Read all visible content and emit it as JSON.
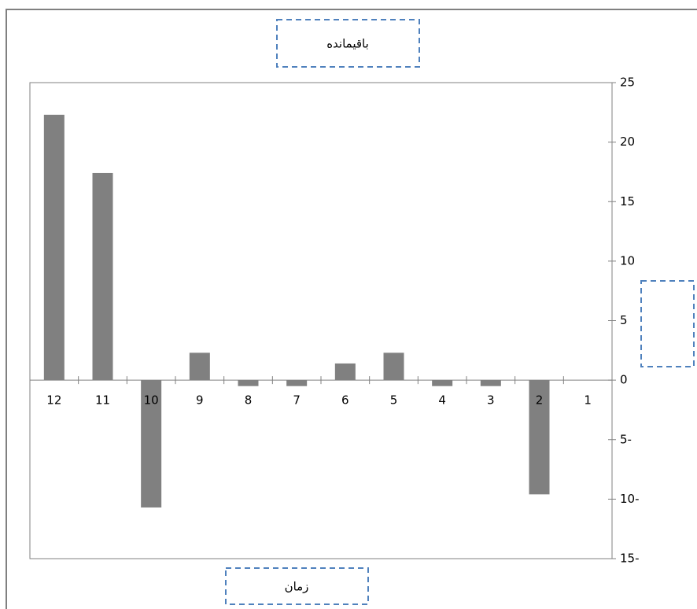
{
  "chart_data": {
    "type": "bar",
    "title": "باقیمانده",
    "x_label": "زمان",
    "categories": [
      "12",
      "11",
      "10",
      "9",
      "8",
      "7",
      "6",
      "5",
      "4",
      "3",
      "2",
      "1"
    ],
    "values": [
      22.3,
      17.4,
      -10.7,
      2.3,
      -0.5,
      -0.5,
      1.4,
      2.3,
      -0.5,
      -0.5,
      -9.6,
      0
    ],
    "color": "#808080",
    "ylim": [
      -15,
      25
    ],
    "yticks": [
      25,
      20,
      15,
      10,
      5,
      0,
      {
        "value": -5,
        "label": "5-"
      },
      {
        "value": -10,
        "label": "10-"
      },
      {
        "value": -15,
        "label": "15-"
      }
    ],
    "grid": false
  }
}
